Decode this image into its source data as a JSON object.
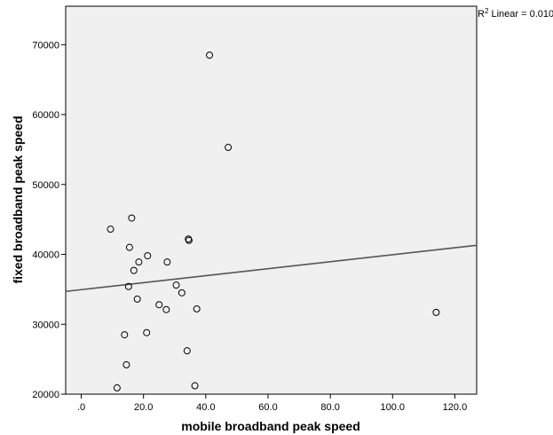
{
  "chart_data": {
    "type": "scatter",
    "title": "",
    "xlabel": "mobile broadband peak speed",
    "ylabel": "fixed broadband peak speed",
    "xlim": [
      -5,
      127
    ],
    "ylim": [
      20000,
      75500
    ],
    "x_ticks": [
      0,
      20,
      40,
      60,
      80,
      100,
      120
    ],
    "x_tick_labels": [
      ".0",
      "20.0",
      "40.0",
      "60.0",
      "80.0",
      "100.0",
      "120.0"
    ],
    "y_ticks": [
      20000,
      30000,
      40000,
      50000,
      60000,
      70000
    ],
    "y_tick_labels": [
      "20000",
      "30000",
      "40000",
      "50000",
      "60000",
      "70000"
    ],
    "grid": false,
    "points": [
      {
        "x": 41.2,
        "y": 68500
      },
      {
        "x": 47.2,
        "y": 55300
      },
      {
        "x": 16.2,
        "y": 45200
      },
      {
        "x": 9.4,
        "y": 43600
      },
      {
        "x": 34.4,
        "y": 42200
      },
      {
        "x": 34.6,
        "y": 42000
      },
      {
        "x": 15.5,
        "y": 41000
      },
      {
        "x": 21.3,
        "y": 39800
      },
      {
        "x": 18.5,
        "y": 38900
      },
      {
        "x": 27.6,
        "y": 38900
      },
      {
        "x": 16.9,
        "y": 37700
      },
      {
        "x": 30.5,
        "y": 35600
      },
      {
        "x": 15.2,
        "y": 35400
      },
      {
        "x": 32.3,
        "y": 34500
      },
      {
        "x": 18.0,
        "y": 33600
      },
      {
        "x": 25.0,
        "y": 32800
      },
      {
        "x": 27.3,
        "y": 32100
      },
      {
        "x": 37.1,
        "y": 32200
      },
      {
        "x": 114.0,
        "y": 31700
      },
      {
        "x": 13.9,
        "y": 28500
      },
      {
        "x": 21.0,
        "y": 28800
      },
      {
        "x": 34.0,
        "y": 26200
      },
      {
        "x": 14.5,
        "y": 24200
      },
      {
        "x": 11.5,
        "y": 20900
      },
      {
        "x": 36.5,
        "y": 21200
      }
    ],
    "fit_line": {
      "x": [
        -5,
        127
      ],
      "y": [
        34700,
        41300
      ]
    },
    "fit_label": "R² Linear = 0.010",
    "colors": {
      "plot_background": "#f0f0f0",
      "marker_stroke": "#000000",
      "fit_line": "#555555"
    }
  }
}
